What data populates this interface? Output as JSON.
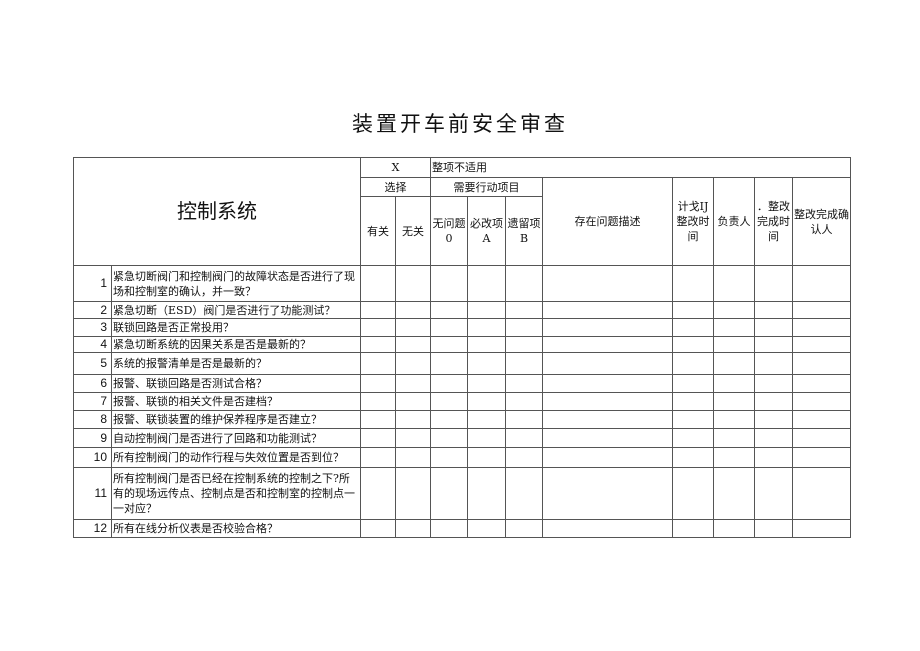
{
  "title": "装置开车前安全审查",
  "section": "控制系统",
  "header": {
    "x_mark": "X",
    "not_applicable": "整项不适用",
    "select": "选择",
    "action_items": "需要行动项目",
    "relevant": "有关",
    "irrelevant": "无关",
    "no_problem": "无问题",
    "no_problem_code": "0",
    "must_fix": "必改项",
    "must_fix_code": "A",
    "remaining": "遗留项",
    "remaining_code": "B",
    "problem_desc": "存在问题描述",
    "planned_time": "计戈IJ整改时间",
    "owner": "负责人",
    "done_time": "．整改完成时间",
    "confirm": "整改完成确认人"
  },
  "rows": [
    {
      "no": "1",
      "q": "紧急切断阀门和控制阀门的故障状态是否进行了现场和控制室的确认，并一致？"
    },
    {
      "no": "2",
      "q": "紧急切断（ESD）阀门是否进行了功能测试？"
    },
    {
      "no": "3",
      "q": "联锁回路是否正常投用？"
    },
    {
      "no": "4",
      "q": "紧急切断系统的因果关系是否是最新的？"
    },
    {
      "no": "5",
      "q": "系统的报警清单是否是最新的？"
    },
    {
      "no": "6",
      "q": "报警、联锁回路是否测试合格？"
    },
    {
      "no": "7",
      "q": "报警、联锁的相关文件是否建档？"
    },
    {
      "no": "8",
      "q": "报警、联锁装置的维护保养程序是否建立？"
    },
    {
      "no": "9",
      "q": "自动控制阀门是否进行了回路和功能测试？"
    },
    {
      "no": "10",
      "q": "所有控制阀门的动作行程与失效位置是否到位？"
    },
    {
      "no": "11",
      "q": "所有控制阀门是否已经在控制系统的控制之下?所有的现场远传点、控制点是否和控制室的控制点一一对应？"
    },
    {
      "no": "12",
      "q": "所有在线分析仪表是否校验合格？"
    }
  ]
}
